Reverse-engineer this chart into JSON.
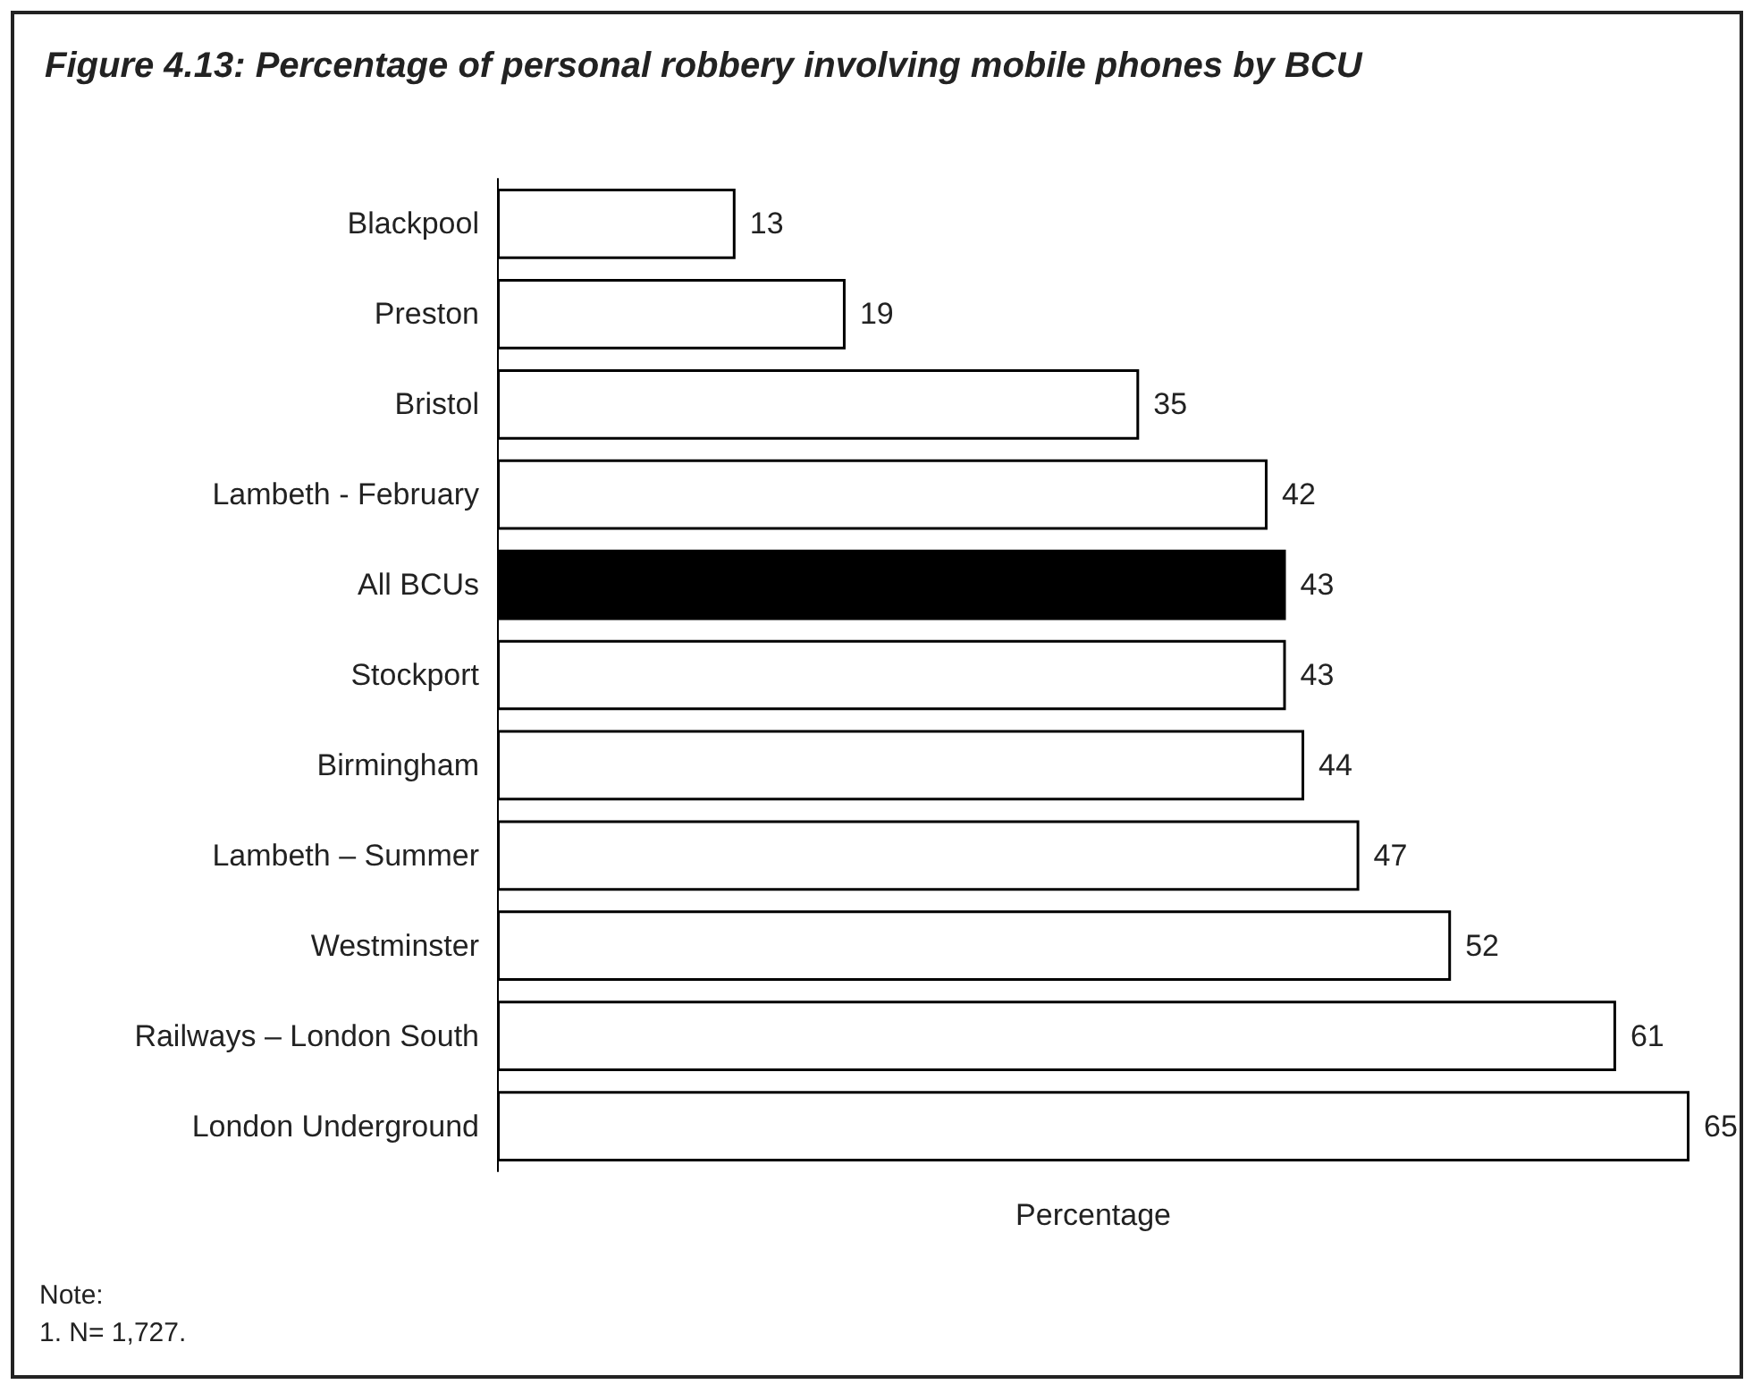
{
  "chart_data": {
    "type": "bar",
    "orientation": "horizontal",
    "title": "Figure 4.13: Percentage of personal robbery involving mobile phones by BCU",
    "xlabel": "Percentage",
    "categories": [
      "Blackpool",
      "Preston",
      "Bristol",
      "Lambeth - February",
      "All BCUs",
      "Stockport",
      "Birmingham",
      "Lambeth – Summer",
      "Westminster",
      "Railways – London South",
      "London Underground"
    ],
    "values": [
      13,
      19,
      35,
      42,
      43,
      43,
      44,
      47,
      52,
      61,
      65
    ],
    "colors": [
      "#ffffff",
      "#ffffff",
      "#ffffff",
      "#ffffff",
      "#000000",
      "#ffffff",
      "#ffffff",
      "#ffffff",
      "#ffffff",
      "#ffffff",
      "#ffffff"
    ],
    "data_labels": true,
    "annotations": [
      "Note:",
      "1. N= 1,727."
    ]
  }
}
